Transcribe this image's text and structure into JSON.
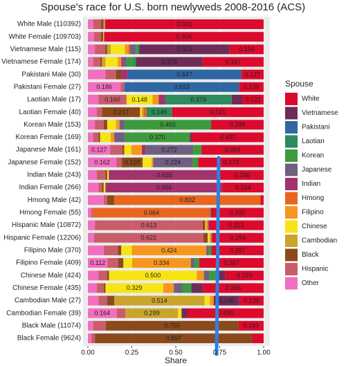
{
  "chart_data": {
    "type": "stacked-bar-horizontal",
    "title": "Spouse's race for U.S. born newlyweds 2008-2016 (ACS)",
    "x_label": "Share",
    "legend_title": "Spouse",
    "legend_position": "right",
    "grid": true,
    "xlim": [
      0,
      1
    ],
    "xticks": [
      {
        "value": 0,
        "label": "0.00"
      },
      {
        "value": 0.25,
        "label": "0.25"
      },
      {
        "value": 0.5,
        "label": "0.50"
      },
      {
        "value": 0.75,
        "label": "0.75"
      },
      {
        "value": 1,
        "label": "1.00"
      }
    ],
    "categories": [
      "White Male (110392)",
      "White Female (109703)",
      "Vietnamese Male (115)",
      "Vietnamese Female (174)",
      "Pakistani Male (30)",
      "Pakistani Female (27)",
      "Laotian Male (17)",
      "Laotian Female (40)",
      "Korean Male (153)",
      "Korean Female (169)",
      "Japanese Male (161)",
      "Japanese Female (152)",
      "Indian Male (243)",
      "Indian Female (266)",
      "Hmong Male (42)",
      "Hmong Female (55)",
      "Hispanic Male (10872)",
      "Hispanic Female (12206)",
      "Filipino Male (370)",
      "Filipino Female (409)",
      "Chinese Male (424)",
      "Chinese Female (435)",
      "Cambodian Male (27)",
      "Cambodian Female (39)",
      "Black Male (11074)",
      "Black Female (9624)"
    ],
    "series": [
      {
        "name": "White",
        "color": "#dc0a2d",
        "values": [
          0.901,
          0.906,
          0.194,
          0.347,
          0.127,
          0.139,
          0.122,
          0.521,
          0.299,
          0.407,
          0.354,
          0.373,
          0.246,
          0.234,
          0.018,
          0.3,
          0.312,
          0.294,
          0.297,
          0.367,
          0.219,
          0.346,
          0.139,
          0.435,
          0.143,
          0.063
        ],
        "value_labels": [
          "0.901",
          "0.906",
          "0.194",
          "0.347",
          "0.127",
          "0.139",
          "0.122",
          "0.521",
          "0.299",
          "0.407",
          "0.354",
          "0.373",
          "0.246",
          "0.234",
          null,
          "0.300",
          "0.312",
          "0.294",
          "0.297",
          "0.367",
          "0.219",
          "0.346",
          "0.139",
          "0.435",
          "0.143",
          null
        ]
      },
      {
        "name": "Vietnamese",
        "color": "#6e2c57",
        "values": [
          0,
          0,
          0.513,
          0.379,
          0,
          0,
          0.06,
          0,
          0,
          0.013,
          0,
          0,
          0,
          0,
          0,
          0,
          0,
          0,
          0,
          0,
          0.051,
          0.065,
          0.145,
          0.032,
          0,
          0
        ],
        "value_labels": [
          null,
          null,
          "0.513",
          "0.379",
          null,
          null,
          null,
          null,
          null,
          null,
          null,
          null,
          null,
          null,
          null,
          null,
          null,
          null,
          null,
          null,
          null,
          null,
          "0.145",
          null,
          null,
          null
        ]
      },
      {
        "name": "Pakistani",
        "color": "#2f67a3",
        "values": [
          0,
          0,
          0,
          0,
          0.647,
          0.653,
          0,
          0,
          0,
          0,
          0,
          0,
          0,
          0,
          0,
          0,
          0,
          0,
          0,
          0,
          0,
          0,
          0,
          0,
          0,
          0
        ],
        "value_labels": [
          null,
          null,
          null,
          null,
          "0.647",
          "0.653",
          null,
          null,
          null,
          null,
          null,
          null,
          null,
          null,
          null,
          null,
          null,
          null,
          null,
          null,
          null,
          null,
          null,
          null,
          null,
          null
        ]
      },
      {
        "name": "Laotian",
        "color": "#2e8b5c",
        "values": [
          0,
          0,
          0.01,
          0.014,
          0,
          0,
          0.379,
          0.146,
          0,
          0,
          0,
          0,
          0,
          0,
          0,
          0.006,
          0,
          0,
          0,
          0,
          0,
          0,
          0,
          0,
          0,
          0
        ],
        "value_labels": [
          null,
          null,
          null,
          null,
          null,
          null,
          "0.379",
          "0.146",
          null,
          null,
          null,
          null,
          null,
          null,
          null,
          null,
          null,
          null,
          null,
          null,
          null,
          null,
          null,
          null,
          null,
          null
        ]
      },
      {
        "name": "Korean",
        "color": "#3d9a3d",
        "values": [
          0.001,
          0.001,
          0.01,
          0.04,
          0,
          0,
          0,
          0,
          0.492,
          0.37,
          0.047,
          0.031,
          0,
          0,
          0,
          0,
          0,
          0,
          0.015,
          0.027,
          0.04,
          0.05,
          0,
          0,
          0,
          0
        ],
        "value_labels": [
          null,
          null,
          null,
          null,
          null,
          null,
          null,
          null,
          "0.492",
          "0.370",
          null,
          null,
          null,
          null,
          null,
          null,
          null,
          null,
          null,
          null,
          null,
          null,
          null,
          null,
          null,
          null
        ]
      },
      {
        "name": "Japanese",
        "color": "#6f5f80",
        "values": [
          0.001,
          0.001,
          0.033,
          0.02,
          0,
          0,
          0,
          0,
          0.029,
          0.06,
          0.272,
          0.224,
          0,
          0,
          0,
          0,
          0.005,
          0.004,
          0.014,
          0.02,
          0.03,
          0.05,
          0,
          0,
          0,
          0
        ],
        "value_labels": [
          null,
          null,
          null,
          null,
          null,
          null,
          null,
          null,
          null,
          null,
          "0.272",
          "0.224",
          null,
          null,
          null,
          null,
          null,
          null,
          null,
          null,
          null,
          null,
          null,
          null,
          null,
          null
        ]
      },
      {
        "name": "Indian",
        "color": "#a3336f",
        "values": [
          0.002,
          0.001,
          0,
          0.01,
          0.033,
          0,
          0.036,
          0,
          0,
          0,
          0.02,
          0,
          0.635,
          0.666,
          0,
          0,
          0,
          0,
          0,
          0,
          0,
          0,
          0,
          0,
          0,
          0
        ],
        "value_labels": [
          null,
          null,
          null,
          null,
          null,
          null,
          null,
          null,
          null,
          null,
          null,
          null,
          "0.635",
          "0.666",
          null,
          null,
          null,
          null,
          null,
          null,
          null,
          null,
          null,
          null,
          null,
          null
        ]
      },
      {
        "name": "Hmong",
        "color": "#e8661f",
        "values": [
          0,
          0,
          0.01,
          0,
          0,
          0,
          0,
          0.016,
          0,
          0,
          0,
          0,
          0,
          0,
          0.832,
          0.664,
          0,
          0,
          0,
          0,
          0,
          0,
          0,
          0,
          0,
          0
        ],
        "value_labels": [
          null,
          null,
          null,
          null,
          null,
          null,
          null,
          null,
          null,
          null,
          null,
          null,
          null,
          null,
          "0.832",
          "0.664",
          null,
          null,
          null,
          null,
          null,
          null,
          null,
          null,
          null,
          null
        ]
      },
      {
        "name": "Filipino",
        "color": "#f7961e",
        "values": [
          0.003,
          0.002,
          0.02,
          0.02,
          0,
          0,
          0.035,
          0.01,
          0.02,
          0.02,
          0.06,
          0.01,
          0,
          0,
          0,
          0,
          0.01,
          0.01,
          0.424,
          0.334,
          0.04,
          0.06,
          0.022,
          0,
          0,
          0
        ],
        "value_labels": [
          null,
          null,
          null,
          null,
          null,
          null,
          null,
          null,
          null,
          null,
          null,
          null,
          null,
          null,
          null,
          null,
          null,
          null,
          "0.424",
          "0.334",
          null,
          null,
          null,
          null,
          null,
          null
        ]
      },
      {
        "name": "Chinese",
        "color": "#f7e414",
        "values": [
          0.002,
          0.002,
          0.08,
          0.07,
          0,
          0,
          0.148,
          0.01,
          0.05,
          0.06,
          0.04,
          0.05,
          0.009,
          0.01,
          0,
          0,
          0.005,
          0.01,
          0.06,
          0.05,
          0.5,
          0.329,
          0.03,
          0.02,
          0,
          0
        ],
        "value_labels": [
          null,
          null,
          null,
          null,
          null,
          null,
          "0.148",
          null,
          null,
          null,
          null,
          null,
          null,
          null,
          null,
          null,
          null,
          null,
          null,
          null,
          "0.500",
          "0.329",
          null,
          null,
          null,
          null
        ]
      },
      {
        "name": "Cambodian",
        "color": "#c9a52b",
        "values": [
          0,
          0,
          0.02,
          0.02,
          0,
          0,
          0,
          0,
          0,
          0,
          0,
          0,
          0,
          0,
          0,
          0,
          0,
          0,
          0,
          0,
          0,
          0,
          0.514,
          0.299,
          0,
          0
        ],
        "value_labels": [
          null,
          null,
          null,
          null,
          null,
          null,
          null,
          null,
          null,
          null,
          null,
          null,
          null,
          null,
          null,
          null,
          null,
          null,
          null,
          null,
          null,
          null,
          "0.514",
          "0.299",
          null,
          null
        ]
      },
      {
        "name": "Black",
        "color": "#8c4a1c",
        "values": [
          0.015,
          0.012,
          0.01,
          0.01,
          0.033,
          0,
          0,
          0.217,
          0.02,
          0.01,
          0.01,
          0.12,
          0.01,
          0.01,
          0.04,
          0,
          0.015,
          0.025,
          0.02,
          0.03,
          0.01,
          0.01,
          0.04,
          0,
          0.755,
          0.897
        ],
        "value_labels": [
          null,
          null,
          null,
          null,
          null,
          null,
          null,
          "0.217",
          null,
          null,
          null,
          "0.120",
          null,
          null,
          null,
          null,
          null,
          null,
          null,
          null,
          null,
          null,
          null,
          null,
          "0.755",
          "0.897"
        ]
      },
      {
        "name": "Hispanic",
        "color": "#c95d6a",
        "values": [
          0.045,
          0.04,
          0.06,
          0.04,
          0.06,
          0.022,
          0.16,
          0.03,
          0.05,
          0.03,
          0.07,
          0.03,
          0.05,
          0.02,
          0.02,
          0.01,
          0.613,
          0.622,
          0.08,
          0.06,
          0.05,
          0.04,
          0.05,
          0.05,
          0.072,
          0.02
        ],
        "value_labels": [
          null,
          null,
          null,
          null,
          null,
          null,
          "0.160",
          null,
          null,
          null,
          null,
          null,
          null,
          null,
          null,
          null,
          "0.613",
          "0.622",
          null,
          null,
          null,
          null,
          null,
          null,
          null,
          null
        ]
      },
      {
        "name": "Other",
        "color": "#f26fc0",
        "values": [
          0.03,
          0.035,
          0.04,
          0.03,
          0.1,
          0.186,
          0.06,
          0.05,
          0.04,
          0.03,
          0.127,
          0.162,
          0.05,
          0.06,
          0.09,
          0.02,
          0.04,
          0.035,
          0.09,
          0.112,
          0.06,
          0.05,
          0.06,
          0.164,
          0.03,
          0.02
        ],
        "value_labels": [
          null,
          null,
          null,
          null,
          null,
          "0.186",
          null,
          null,
          null,
          null,
          "0.127",
          "0.162",
          null,
          null,
          null,
          null,
          null,
          null,
          null,
          "0.112",
          null,
          null,
          null,
          "0.164",
          null,
          null
        ]
      }
    ]
  }
}
